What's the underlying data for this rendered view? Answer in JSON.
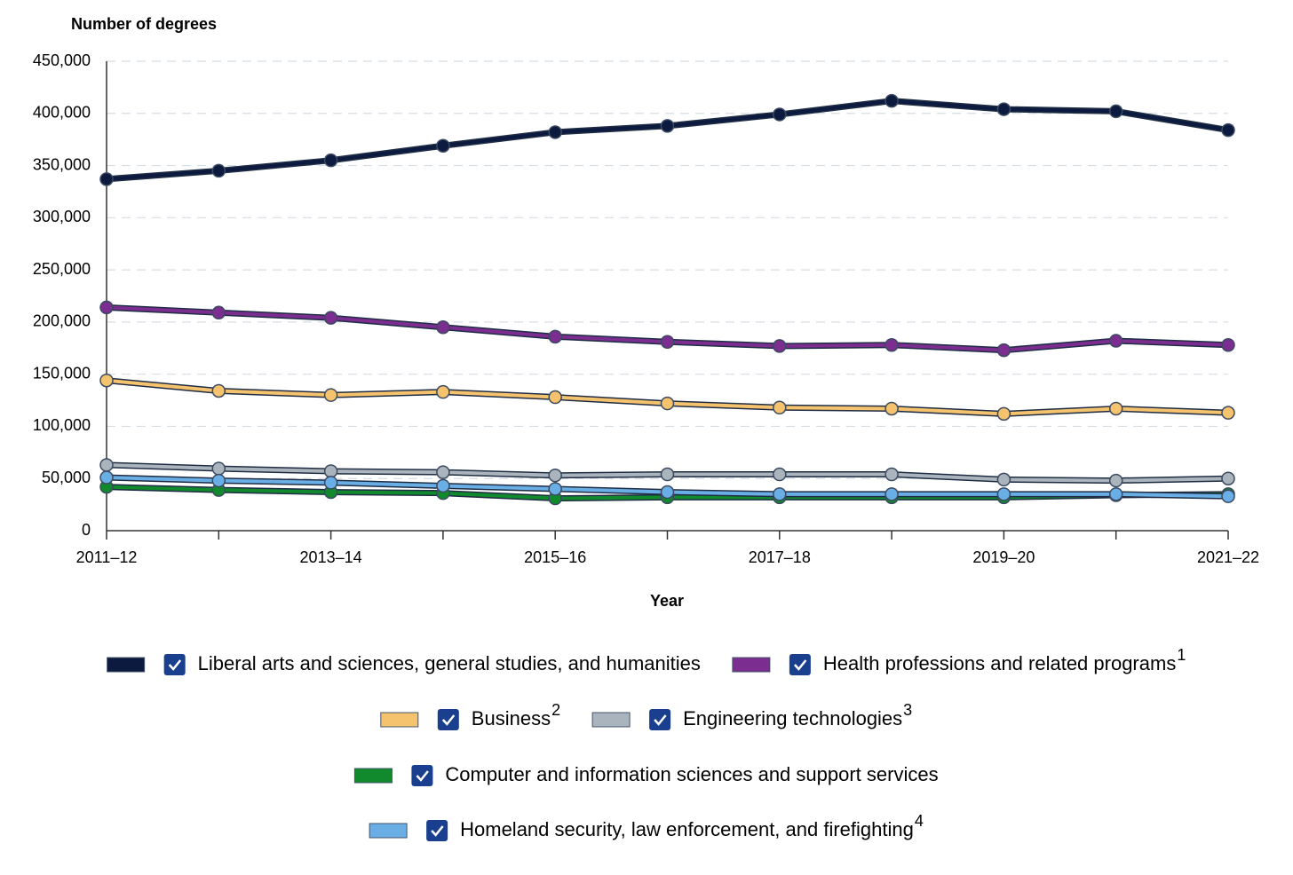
{
  "chart_data": {
    "type": "line",
    "y_title": "Number of degrees",
    "x_title": "Year",
    "categories": [
      "2011–12",
      null,
      "2013–14",
      null,
      "2015–16",
      null,
      "2017–18",
      null,
      "2019–20",
      null,
      "2021–22"
    ],
    "ylim": [
      0,
      450000
    ],
    "yticks": [
      0,
      {
        "value": 50000,
        "label": "50,000"
      },
      {
        "value": 100000,
        "label": "100,000"
      },
      {
        "value": 150000,
        "label": "150,000"
      },
      {
        "value": 200000,
        "label": "200,000"
      },
      {
        "value": 250000,
        "label": "250,000"
      },
      {
        "value": 300000,
        "label": "300,000"
      },
      {
        "value": 350000,
        "label": "350,000"
      },
      {
        "value": 400000,
        "label": "400,000"
      },
      {
        "value": 450000,
        "label": "450,000"
      }
    ],
    "grid": true,
    "series": [
      {
        "name": "Liberal arts and sciences, general studies, and humanities",
        "color": "#0b1a3e",
        "values": [
          337000,
          345000,
          355000,
          369000,
          382000,
          388000,
          399000,
          412000,
          404000,
          402000,
          384000
        ]
      },
      {
        "name": "Health professions and related programs",
        "note": "1",
        "color": "#7b2d90",
        "values": [
          214000,
          209000,
          204000,
          195000,
          186000,
          181000,
          177000,
          178000,
          173000,
          182000,
          178000
        ]
      },
      {
        "name": "Business",
        "note": "2",
        "color": "#f5c36e",
        "values": [
          144000,
          134000,
          130000,
          133000,
          128000,
          122000,
          118000,
          117000,
          112000,
          117000,
          113000
        ]
      },
      {
        "name": "Engineering technologies",
        "note": "3",
        "color": "#aab4bd",
        "values": [
          63000,
          59500,
          57000,
          56000,
          53000,
          54000,
          54000,
          54000,
          49000,
          48000,
          50000
        ]
      },
      {
        "name": "Computer and information sciences and support services",
        "color": "#118a2e",
        "values": [
          42000,
          39000,
          37000,
          36000,
          31000,
          32000,
          32000,
          32000,
          32000,
          34000,
          35000
        ]
      },
      {
        "name": "Homeland security, law enforcement, and firefighting",
        "note": "4",
        "color": "#6aaee6",
        "values": [
          51000,
          48000,
          46000,
          43000,
          40000,
          37000,
          35000,
          35000,
          35000,
          35000,
          33000
        ]
      }
    ]
  }
}
